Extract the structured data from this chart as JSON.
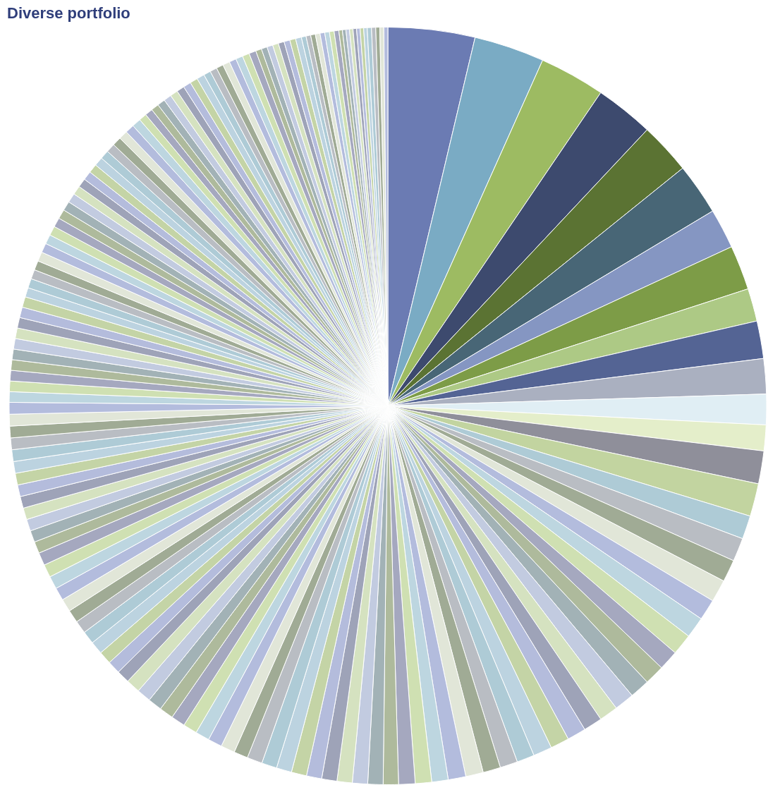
{
  "chart_data": {
    "type": "pie",
    "title": "Diverse portfolio",
    "categories": [
      null,
      null,
      null,
      null,
      null,
      null,
      null,
      null,
      null,
      null,
      null,
      null,
      null,
      null,
      null,
      null,
      null,
      null,
      null,
      null,
      null,
      null,
      null,
      null,
      null,
      null,
      null,
      null,
      null,
      null,
      null,
      null,
      null,
      null,
      null,
      null,
      null,
      null,
      null,
      null,
      null,
      null,
      null,
      null,
      null,
      null,
      null,
      null,
      null,
      null,
      null,
      null,
      null,
      null,
      null,
      null,
      null,
      null,
      null,
      null,
      null,
      null,
      null,
      null,
      null,
      null,
      null,
      null,
      null,
      null,
      null,
      null,
      null,
      null,
      null,
      null,
      null,
      null,
      null,
      null,
      null,
      null,
      null,
      null,
      null,
      null,
      null,
      null,
      null,
      null,
      null,
      null,
      null,
      null,
      null,
      null,
      null,
      null,
      null,
      null,
      null,
      null,
      null,
      null,
      null,
      null,
      null,
      null,
      null,
      null,
      null,
      null,
      null,
      null,
      null,
      null,
      null,
      null,
      null,
      null,
      null,
      null,
      null,
      null,
      null,
      null,
      null,
      null,
      null,
      null,
      null,
      null,
      null,
      null,
      null,
      null,
      null,
      null,
      null,
      null,
      null,
      null,
      null,
      null,
      null,
      null,
      null,
      null,
      null,
      null,
      null,
      null,
      null,
      null,
      null,
      null,
      null,
      null,
      null,
      null,
      null,
      null,
      null,
      null
    ],
    "values": [
      3.7,
      3.0,
      2.8,
      2.5,
      2.2,
      2.2,
      1.7,
      1.9,
      1.4,
      1.6,
      1.5,
      1.3,
      1.1,
      1.4,
      1.4,
      1.0,
      1.0,
      0.95,
      0.95,
      0.9,
      0.9,
      0.9,
      0.85,
      0.85,
      0.85,
      0.85,
      0.8,
      0.8,
      0.8,
      0.8,
      0.8,
      0.75,
      0.75,
      0.75,
      0.75,
      0.75,
      0.7,
      0.7,
      0.7,
      0.65,
      0.65,
      0.65,
      0.65,
      0.65,
      0.65,
      0.65,
      0.65,
      0.65,
      0.65,
      0.6,
      0.6,
      0.6,
      0.6,
      0.6,
      0.6,
      0.6,
      0.6,
      0.6,
      0.6,
      0.55,
      0.55,
      0.55,
      0.55,
      0.55,
      0.55,
      0.55,
      0.55,
      0.55,
      0.55,
      0.55,
      0.55,
      0.5,
      0.5,
      0.5,
      0.5,
      0.5,
      0.5,
      0.5,
      0.5,
      0.5,
      0.5,
      0.5,
      0.5,
      0.5,
      0.45,
      0.45,
      0.45,
      0.45,
      0.45,
      0.45,
      0.45,
      0.45,
      0.45,
      0.45,
      0.4,
      0.4,
      0.4,
      0.4,
      0.4,
      0.4,
      0.4,
      0.4,
      0.4,
      0.4,
      0.4,
      0.4,
      0.38,
      0.38,
      0.38,
      0.38,
      0.38,
      0.38,
      0.38,
      0.38,
      0.38,
      0.38,
      0.38,
      0.33,
      0.33,
      0.33,
      0.33,
      0.33,
      0.33,
      0.33,
      0.33,
      0.33,
      0.33,
      0.3,
      0.3,
      0.3,
      0.3,
      0.3,
      0.3,
      0.3,
      0.3,
      0.25,
      0.25,
      0.25,
      0.25,
      0.25,
      0.25,
      0.25,
      0.25,
      0.2,
      0.2,
      0.2,
      0.2,
      0.2,
      0.2,
      0.2,
      0.2,
      0.15,
      0.15,
      0.15,
      0.15,
      0.15,
      0.15,
      0.15,
      0.15,
      0.18,
      0.18,
      0.17,
      0.17,
      0.17
    ],
    "colors": [
      "#6b7bb3",
      "#7aabc4",
      "#9dbb62",
      "#3d4a6e",
      "#5b7333",
      "#486676",
      "#8596c2",
      "#7d9c47",
      "#adc985",
      "#546494",
      "#aab0c0",
      "#e0eef4",
      "#e4eeca",
      "#8f8f9a",
      "#c2d4a0",
      "#aecbd6",
      "#b9bdc3",
      "#a0ab95",
      "#e1e6d8",
      "#b3bcdd",
      "#bdd6e0",
      "#cfe0b2",
      "#a5a8bf",
      "#aeba9c",
      "#a2b2b6",
      "#c2cbe0",
      "#d5e2c0",
      "#9ea3b8",
      "#b4bcdc",
      "#c4d4a6",
      "#bcd3e0",
      "#aecbd6",
      "#b9bdc3",
      "#a0ab95",
      "#e1e6d8",
      "#b3bcdd",
      "#bdd6e0",
      "#cfe0b2",
      "#a5a8bf",
      "#aeba9c",
      "#a2b2b6",
      "#c2cbe0",
      "#d5e2c0",
      "#9ea3b8",
      "#b4bcdc",
      "#c4d4a6",
      "#bcd3e0",
      "#aecbd6",
      "#b9bdc3",
      "#a0ab95",
      "#e1e6d8",
      "#b3bcdd",
      "#bdd6e0",
      "#cfe0b2",
      "#a5a8bf",
      "#aeba9c",
      "#a2b2b6",
      "#c2cbe0",
      "#d5e2c0",
      "#9ea3b8",
      "#b4bcdc",
      "#c4d4a6",
      "#bcd3e0",
      "#aecbd6",
      "#b9bdc3",
      "#a0ab95",
      "#e1e6d8",
      "#b3bcdd",
      "#bdd6e0",
      "#cfe0b2",
      "#a5a8bf",
      "#aeba9c",
      "#a2b2b6",
      "#c2cbe0",
      "#d5e2c0",
      "#9ea3b8",
      "#b4bcdc",
      "#c4d4a6",
      "#bcd3e0",
      "#aecbd6",
      "#b9bdc3",
      "#a0ab95",
      "#e1e6d8",
      "#b3bcdd",
      "#bdd6e0",
      "#cfe0b2",
      "#a5a8bf",
      "#aeba9c",
      "#a2b2b6",
      "#c2cbe0",
      "#d5e2c0",
      "#9ea3b8",
      "#b4bcdc",
      "#c4d4a6",
      "#bcd3e0",
      "#aecbd6",
      "#b9bdc3",
      "#a0ab95",
      "#e1e6d8",
      "#b3bcdd",
      "#bdd6e0",
      "#cfe0b2",
      "#a5a8bf",
      "#aeba9c",
      "#a2b2b6",
      "#c2cbe0",
      "#d5e2c0",
      "#9ea3b8",
      "#b4bcdc",
      "#c4d4a6",
      "#bcd3e0",
      "#aecbd6",
      "#b9bdc3",
      "#a0ab95",
      "#e1e6d8",
      "#b3bcdd",
      "#bdd6e0",
      "#cfe0b2",
      "#a5a8bf",
      "#aeba9c",
      "#a2b2b6",
      "#c2cbe0",
      "#d5e2c0",
      "#9ea3b8",
      "#b4bcdc",
      "#c4d4a6",
      "#bcd3e0",
      "#aecbd6",
      "#b9bdc3",
      "#a0ab95",
      "#e1e6d8",
      "#b3bcdd",
      "#bdd6e0",
      "#cfe0b2",
      "#a5a8bf",
      "#aeba9c",
      "#a2b2b6",
      "#c2cbe0",
      "#d5e2c0",
      "#9ea3b8",
      "#b4bcdc",
      "#c4d4a6",
      "#bcd3e0",
      "#aecbd6",
      "#b9bdc3",
      "#a0ab95",
      "#e1e6d8",
      "#b3bcdd",
      "#bdd6e0",
      "#cfe0b2",
      "#a5a8bf",
      "#aeba9c",
      "#a2b2b6",
      "#c2cbe0",
      "#d5e2c0",
      "#9ea3b8",
      "#b4bcdc",
      "#c4d4a6",
      "#bcd3e0",
      "#aecbd6",
      "#b9bdc3",
      "#a0ab95",
      "#e1e6d8",
      "#b3bcdd"
    ]
  }
}
